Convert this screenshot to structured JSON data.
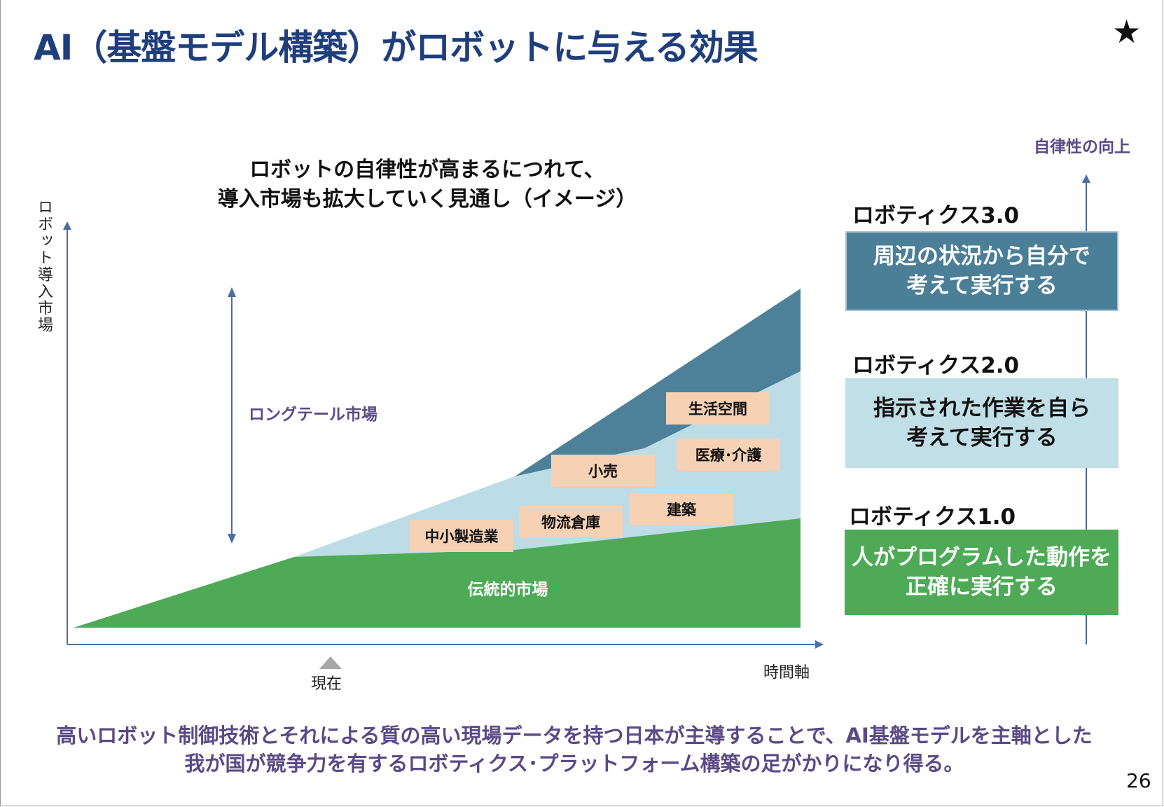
{
  "title": "AI（基盤モデル構築）がロボットに与える効果",
  "star": "★",
  "chart": {
    "heading_line1": "ロボットの自律性が高まるにつれて、",
    "heading_line2": "導入市場も拡大していく見通し（イメージ）",
    "y_axis_label": "ロボット導入市場",
    "x_axis_label": "時間軸",
    "now_label": "現在",
    "long_tail_label": "ロングテール市場",
    "traditional_label": "伝統的市場",
    "tags": {
      "sme_manufacturing": "中小製造業",
      "logistics_warehouse": "物流倉庫",
      "construction": "建築",
      "retail": "小売",
      "medical_care": "医療･介護",
      "living_space": "生活空間"
    },
    "colors": {
      "traditional": "#4eaa56",
      "longtail_light": "#bcdce6",
      "longtail_dark": "#4d8199",
      "axis": "#4b6fa5"
    }
  },
  "autonomy": {
    "label": "自律性の向上",
    "levels": [
      {
        "name": "ロボティクス3.0",
        "line1": "周辺の状況から自分で",
        "line2": "考えて実行する",
        "bg": "#4b7f97",
        "fg": "#ffffff"
      },
      {
        "name": "ロボティクス2.0",
        "line1": "指示された作業を自ら",
        "line2": "考えて実行する",
        "bg": "#c0dfe7",
        "fg": "#111111"
      },
      {
        "name": "ロボティクス1.0",
        "line1": "人がプログラムした動作を",
        "line2": "正確に実行する",
        "bg": "#4eaa56",
        "fg": "#ffffff"
      }
    ]
  },
  "bottom": {
    "line1": "高いロボット制御技術とそれによる質の高い現場データを持つ日本が主導することで、AI基盤モデルを主軸とした",
    "line2": "我が国が競争力を有するロボティクス･プラットフォーム構築の足がかりになり得る。"
  },
  "page_number": "26"
}
